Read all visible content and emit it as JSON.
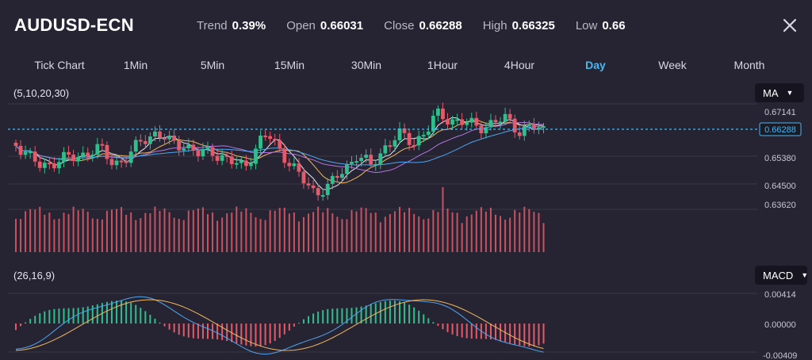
{
  "header": {
    "symbol": "AUDUSD-ECN",
    "stats": [
      {
        "label": "Trend",
        "value": "0.39%"
      },
      {
        "label": "Open",
        "value": "0.66031"
      },
      {
        "label": "Close",
        "value": "0.66288"
      },
      {
        "label": "High",
        "value": "0.66325"
      },
      {
        "label": "Low",
        "value": "0.66"
      }
    ],
    "close_icon": "close-icon"
  },
  "tabs": [
    {
      "label": "Tick Chart",
      "active": false
    },
    {
      "label": "1Min",
      "active": false
    },
    {
      "label": "5Min",
      "active": false
    },
    {
      "label": "15Min",
      "active": false
    },
    {
      "label": "30Min",
      "active": false
    },
    {
      "label": "1Hour",
      "active": false
    },
    {
      "label": "4Hour",
      "active": false
    },
    {
      "label": "Day",
      "active": true
    },
    {
      "label": "Week",
      "active": false
    },
    {
      "label": "Month",
      "active": false
    }
  ],
  "main_chart": {
    "params": "(5,10,20,30)",
    "indicator": "MA",
    "price_labels": [
      "0.67141",
      "0.65380",
      "0.64500",
      "0.63620"
    ],
    "current_price": "0.66288"
  },
  "macd_chart": {
    "params": "(26,16,9)",
    "indicator": "MACD",
    "labels": [
      "0.00414",
      "0.00000",
      "-0.00409"
    ]
  },
  "colors": {
    "background": "#262432",
    "up": "#2fbf8c",
    "down": "#e45a6b",
    "accent": "#49b8f0"
  }
}
